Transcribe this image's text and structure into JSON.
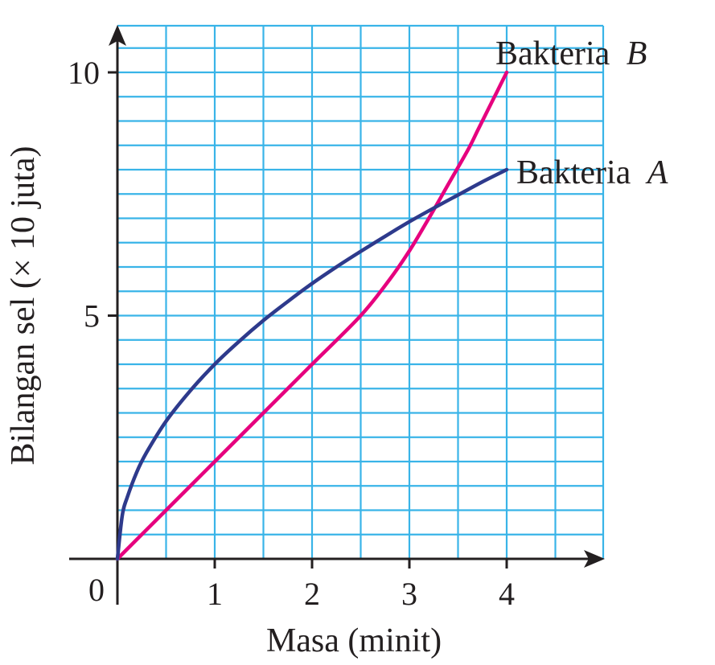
{
  "chart_data": {
    "type": "line",
    "xlabel": "Masa (minit)",
    "ylabel": "Bilangan sel (× 10 juta)",
    "origin_label": "0",
    "xlim": [
      0,
      5
    ],
    "ylim": [
      0,
      10.5
    ],
    "xticks": [
      {
        "value": 1,
        "label": "1"
      },
      {
        "value": 2,
        "label": "2"
      },
      {
        "value": 3,
        "label": "3"
      },
      {
        "value": 4,
        "label": "4"
      }
    ],
    "yticks": [
      {
        "value": 5,
        "label": "5"
      },
      {
        "value": 10,
        "label": "10"
      }
    ],
    "grid": true,
    "grid_step": 0.5,
    "grid_color": "#39b4e8",
    "axis_color": "#231f20",
    "series": [
      {
        "name_prefix": "Bakteria",
        "name_letter": "A",
        "color": "#2e3a8c",
        "x": [
          0,
          0.05,
          0.1,
          0.2,
          0.3,
          0.5,
          0.75,
          1,
          1.25,
          1.5,
          1.75,
          2,
          2.25,
          2.5,
          2.75,
          3,
          3.25,
          3.5,
          3.75,
          4
        ],
        "y": [
          0,
          0.9,
          1.26,
          1.79,
          2.19,
          2.83,
          3.46,
          4.0,
          4.47,
          4.9,
          5.29,
          5.66,
          6.0,
          6.32,
          6.63,
          6.93,
          7.21,
          7.48,
          7.75,
          8.0
        ]
      },
      {
        "name_prefix": "Bakteria",
        "name_letter": "B",
        "color": "#e6007e",
        "x": [
          0,
          0.5,
          1,
          1.5,
          2,
          2.5,
          2.8,
          3,
          3.2,
          3.4,
          3.6,
          3.7,
          3.8,
          3.9,
          4
        ],
        "y": [
          0,
          1.0,
          2.0,
          3.0,
          4.0,
          5.0,
          5.75,
          6.33,
          7.0,
          7.7,
          8.4,
          8.8,
          9.2,
          9.6,
          10.0
        ]
      }
    ]
  }
}
